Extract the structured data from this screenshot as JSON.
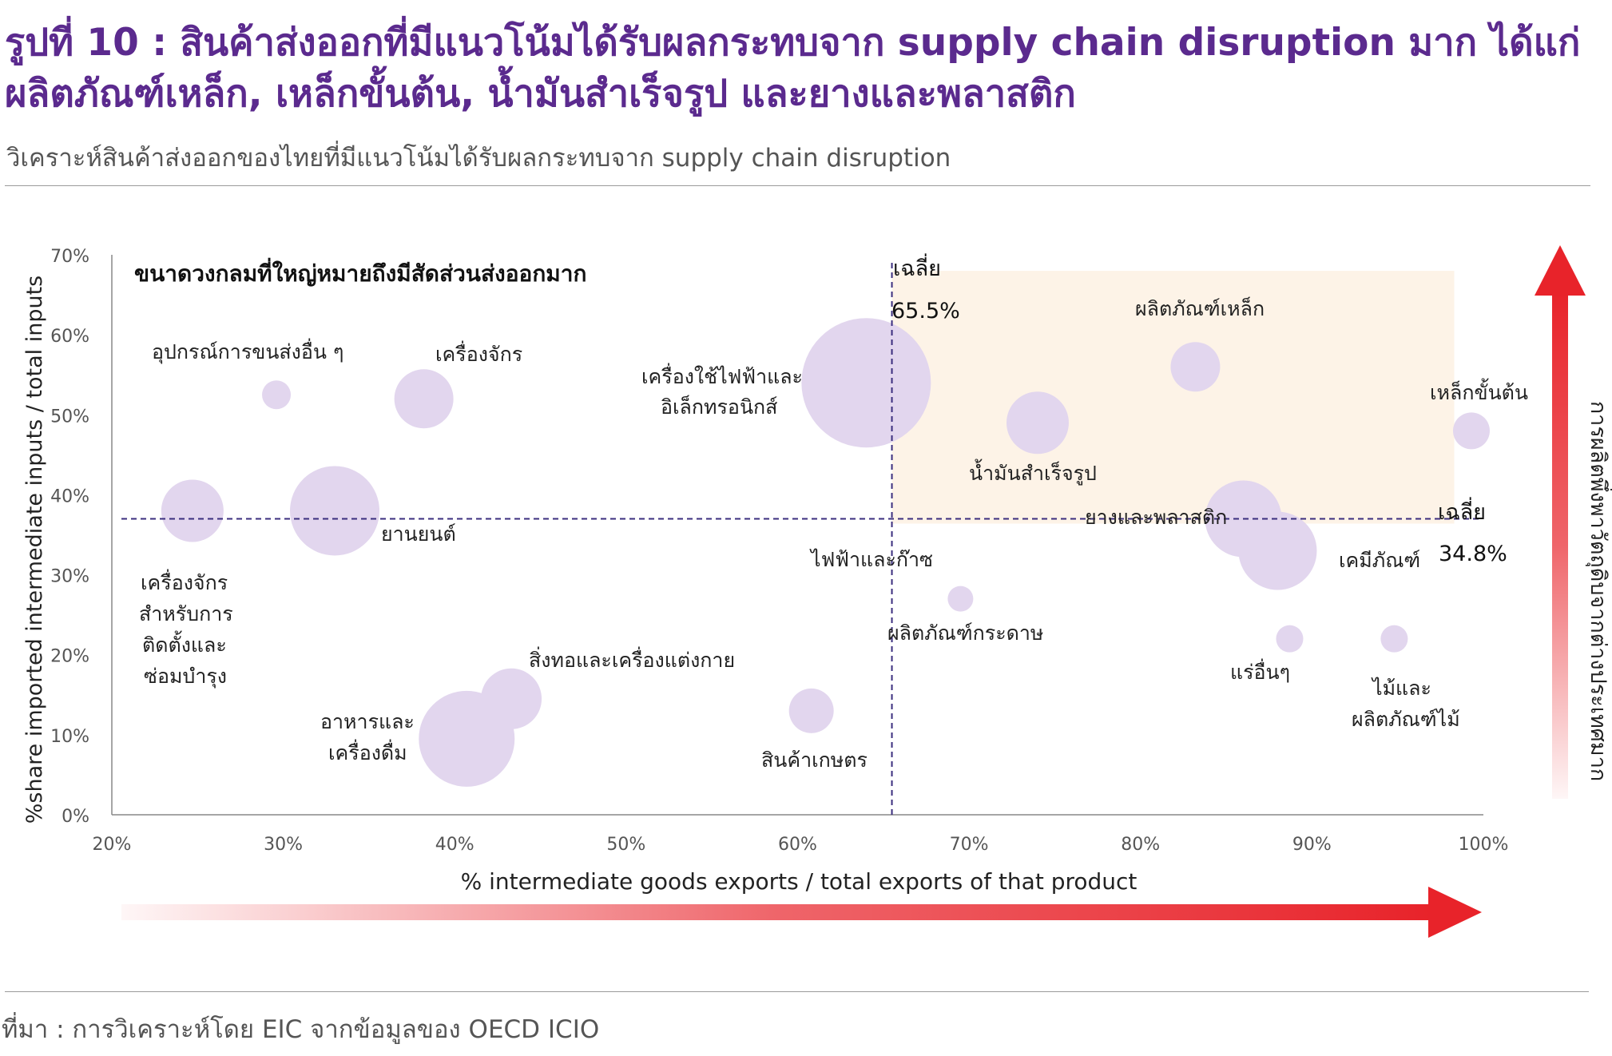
{
  "header": {
    "title": "รูปที่ 10 : สินค้าส่งออกที่มีแนวโน้มได้รับผลกระทบจาก supply chain disruption มาก ได้แก่ ผลิตภัณฑ์เหล็ก, เหล็กขั้นต้น, น้ำมันสำเร็จรูป และยางและพลาสติก",
    "subtitle": "วิเคราะห์สินค้าส่งออกของไทยที่มีแนวโน้มได้รับผลกระทบจาก supply chain disruption"
  },
  "footer": {
    "source": "ที่มา : การวิเคราะห์โดย EIC จากข้อมูลของ OECD ICIO"
  },
  "chart_data": {
    "type": "scatter",
    "subtype": "bubble",
    "xlabel": "% intermediate goods exports / total exports of that product",
    "ylabel": "%share imported intermediate inputs / total inputs",
    "right_axis_label": "การผลิตพึ่งพาวัตถุดิบจากต่างประเทศมาก",
    "bubble_note": "ขนาดวงกลมที่ใหญ่หมายถึงมีสัดส่วนส่งออกมาก",
    "xlim": [
      20,
      100
    ],
    "ylim": [
      0,
      70
    ],
    "xticks": [
      "20%",
      "30%",
      "40%",
      "50%",
      "60%",
      "70%",
      "80%",
      "90%",
      "100%"
    ],
    "yticks": [
      "0%",
      "10%",
      "20%",
      "30%",
      "40%",
      "50%",
      "60%",
      "70%"
    ],
    "bubble_color": "#e2d6ee",
    "highlight_color": "#fdf3e7",
    "arrow_color": "#e8232a",
    "avg_x": {
      "label": "เฉลี่ย",
      "value_label": "65.5%",
      "value": 65.5
    },
    "avg_y": {
      "label": "เฉลี่ย",
      "value_label": "34.8%",
      "value": 34.8
    },
    "points": [
      {
        "label": "อุปกรณ์การขนส่งอื่น ๆ",
        "x": 29.6,
        "y": 52.5,
        "r": 18
      },
      {
        "label": "เครื่องจักร",
        "x": 38.2,
        "y": 52.0,
        "r": 37
      },
      {
        "label": "เครื่องจักรสำหรับการติดตั้งและซ่อมบำรุง",
        "x": 24.7,
        "y": 38.0,
        "r": 39
      },
      {
        "label": "ยานยนต์",
        "x": 33.0,
        "y": 38.0,
        "r": 56
      },
      {
        "label": "เครื่องใช้ไฟฟ้าและอิเล็กทรอนิกส์",
        "x": 64.0,
        "y": 54.0,
        "r": 81
      },
      {
        "label": "น้ำมันสำเร็จรูป",
        "x": 74.0,
        "y": 49.0,
        "r": 39
      },
      {
        "label": "ผลิตภัณฑ์เหล็ก",
        "x": 83.2,
        "y": 56.0,
        "r": 31
      },
      {
        "label": "เหล็กขั้นต้น",
        "x": 99.3,
        "y": 48.0,
        "r": 23
      },
      {
        "label": "ยางและพลาสติก",
        "x": 86.0,
        "y": 37.0,
        "r": 48
      },
      {
        "label": "เคมีภัณฑ์",
        "x": 88.0,
        "y": 33.0,
        "r": 49
      },
      {
        "label": "ผลิตภัณฑ์กระดาษ",
        "x": 69.5,
        "y": 27.0,
        "r": 16
      },
      {
        "label": "แร่อื่นๆ",
        "x": 88.7,
        "y": 22.0,
        "r": 17
      },
      {
        "label": "ไม้และผลิตภัณฑ์ไม้",
        "x": 94.8,
        "y": 22.0,
        "r": 17
      },
      {
        "label": "สิ่งทอและเครื่องแต่งกาย",
        "x": 43.3,
        "y": 14.5,
        "r": 38
      },
      {
        "label": "อาหารและเครื่องดื่ม",
        "x": 40.7,
        "y": 9.5,
        "r": 60
      },
      {
        "label": "สินค้าเกษตร",
        "x": 60.8,
        "y": 13.0,
        "r": 28
      },
      {
        "label": "ไฟฟ้าและก๊าซ",
        "x": 64.8,
        "y": 38.0,
        "r": 0
      }
    ]
  }
}
